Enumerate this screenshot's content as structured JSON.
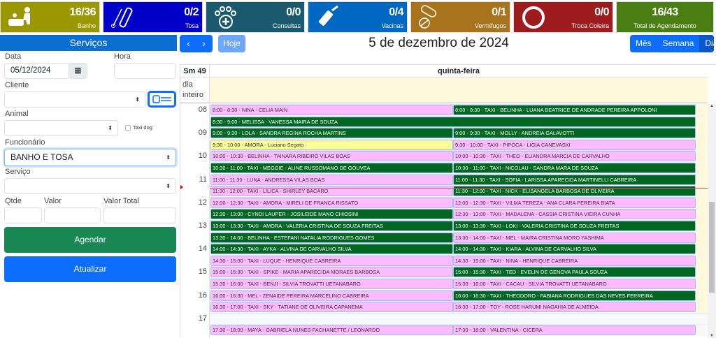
{
  "tiles": [
    {
      "count": "16/36",
      "label": "Banho",
      "color": "#9a9700",
      "icon": "dog-bath-icon"
    },
    {
      "count": "0/2",
      "label": "Tosa",
      "color": "#0000c8",
      "icon": "grooming-clipper-icon"
    },
    {
      "count": "0/0",
      "label": "Consultas",
      "color": "#1b5a6e",
      "icon": "paw-medical-icon"
    },
    {
      "count": "0/4",
      "label": "Vacinas",
      "color": "#0067c2",
      "icon": "syringe-icon"
    },
    {
      "count": "0/1",
      "label": "Vermifugos",
      "color": "#a8731a",
      "icon": "pills-icon"
    },
    {
      "count": "0/0",
      "label": "Troca Coleira",
      "color": "#9e1c1e",
      "icon": "collar-ring-icon"
    },
    {
      "count": "16/43",
      "label": "Total de Agendamento",
      "color": "#4a7e12",
      "icon": ""
    }
  ],
  "sidebar": {
    "header": "Serviços",
    "data_label": "Data",
    "data_value": "05/12/2024",
    "hora_label": "Hora",
    "hora_value": "",
    "cliente_label": "Cliente",
    "cliente_value": "",
    "animal_label": "Animal",
    "animal_value": "",
    "taxi_label": "Taxi dog",
    "taxi_checked": false,
    "funcionario_label": "Funcionário",
    "funcionario_value": "BANHO E TOSA",
    "servico_label": "Serviço",
    "servico_value": "",
    "qtde_label": "Qtde",
    "valor_label": "Valor",
    "valor_total_label": "Valor Total",
    "agendar": "Agendar",
    "atualizar": "Atualizar"
  },
  "toolbar": {
    "prev": "‹",
    "next": "›",
    "today": "Hoje",
    "title": "5 de dezembro de 2024",
    "views": [
      "Mês",
      "Semana",
      "Dia"
    ],
    "active_view": "Dia"
  },
  "calendar": {
    "week": "Sm 49",
    "day": "quinta-feira",
    "allday": "dia inteiro",
    "hours": [
      "08",
      "09",
      "10",
      "11",
      "12",
      "13",
      "14",
      "15",
      "16",
      "17"
    ],
    "now": "11:37",
    "events": [
      {
        "start": "8:00",
        "col": 0,
        "color": "pink",
        "text": "8:00 - 8:30 - NINA - CELIA MAIN"
      },
      {
        "start": "8:30",
        "col": "full",
        "color": "green",
        "text": "8:30 - 9:00 - MELISSA - VANESSA MAIRA DE SOUZA"
      },
      {
        "start": "9:00",
        "col": 0,
        "color": "green",
        "text": "9:00 - 9:30 - LOLA - SANDRA REGINA ROCHA MARTINS"
      },
      {
        "start": "9:30",
        "col": 0,
        "color": "yellow",
        "text": "9:30 - 10:00 - AMORA - Luciano Segato"
      },
      {
        "start": "10:00",
        "col": 0,
        "color": "pink",
        "text": "10:00 - 10:30 - BELINHA - TAINARA RIBEIRO VILAS BOAS"
      },
      {
        "start": "10:30",
        "col": 0,
        "color": "green",
        "text": "10:30 - 11:00 - TAXI - MEGGIE - ALINE RUSSOMANO DE GOUVEA"
      },
      {
        "start": "11:00",
        "col": 0,
        "color": "pink",
        "text": "11:00 - 11:30 - LUNA - ANDRESSA VILAS BOAS"
      },
      {
        "start": "11:30",
        "col": 0,
        "color": "pink",
        "text": "11:30 - 12:00 - TAXI - LILICA - SHIRLEY BACARO"
      },
      {
        "start": "12:00",
        "col": 0,
        "color": "pink",
        "text": "12:00 - 12:30 - TAXI - AMORA - MIRELI DE FRANCA RISSATO"
      },
      {
        "start": "12:30",
        "col": 0,
        "color": "green",
        "text": "12:30 - 13:00 - CYNDI LAUPER - JOSILEIDE MANO CHIOSINI"
      },
      {
        "start": "13:00",
        "col": 0,
        "color": "green",
        "text": "13:00 - 13:30 - TAXI - AMORA - VALERIA CRISTINA DE SOUZA FREITAS"
      },
      {
        "start": "13:30",
        "col": 0,
        "color": "green",
        "text": "13:30 - 14:00 - BELINHA - ESTEFANI NATALIA RODRIGUES GOMES"
      },
      {
        "start": "14:00",
        "col": 0,
        "color": "green",
        "text": "14:00 - 14:30 - TAXI - AYKA - ALVINA DE CARVALHO SILVA"
      },
      {
        "start": "14:30",
        "col": 0,
        "color": "pink",
        "text": "14:30 - 15:00 - TAXI - LUQUE - HENRIQUE CABREIRA"
      },
      {
        "start": "15:00",
        "col": 0,
        "color": "pink",
        "text": "15:00 - 15:30 - TAXI - SPIKE - MARIA APARECIDA MORAES BARBOSA"
      },
      {
        "start": "15:30",
        "col": 0,
        "color": "pink",
        "text": "15:30 - 16:00 - TAXI - BENJI - SILVIA TROVATTI UETANABARO"
      },
      {
        "start": "16:00",
        "col": 0,
        "color": "pink",
        "text": "16:00 - 16:30 - MEL - ZENAIDE PEREIRA MARCELINO CABREIRA"
      },
      {
        "start": "16:30",
        "col": 0,
        "color": "pink",
        "text": "16:30 - 17:00 - TAXI - SKY - TATIANE DE OLIVEIRA CAPANEMA"
      },
      {
        "start": "17:30",
        "col": 0,
        "color": "pink",
        "text": "17:30 - 18:00 - MAYA - GABRIELA NUNES FACHANETTE / LEONARDO"
      },
      {
        "start": "8:00",
        "col": 1,
        "color": "green",
        "text": "8:00 - 8:30 - TAXI - BELINHA - LUANA BEATRICE DE ANDRADE PEREIRA APPOLONI"
      },
      {
        "start": "9:00",
        "col": 1,
        "color": "green",
        "text": "9:00 - 9:30 - TAXI - MOLLY - ANDREIA GALAVOTTI"
      },
      {
        "start": "9:30",
        "col": 1,
        "color": "pink",
        "text": "9:30 - 10:00 - TAXI - PIPOCA - LIGIA CANEVASKI"
      },
      {
        "start": "10:00",
        "col": 1,
        "color": "pink",
        "text": "10:00 - 10:30 - TAXI - THEO - ELIANDRA MARCIA DE CARVALHO"
      },
      {
        "start": "10:30",
        "col": 1,
        "color": "green",
        "text": "10:30 - 11:00 - TAXI - NICOLAU - SANDRA MARA DE SOUZA"
      },
      {
        "start": "11:00",
        "col": 1,
        "color": "green",
        "text": "11:00 - 11:30 - TAXI - SOFIA - LARISSA APARECIDA MARTINELLI CABREIRA"
      },
      {
        "start": "11:30",
        "col": 1,
        "color": "green",
        "text": "11:30 - 12:00 - TAXI - NICK - ELISANGELA BARBOSA DE OLIVEIRA"
      },
      {
        "start": "12:00",
        "col": 1,
        "color": "pink",
        "text": "12:00 - 12:30 - TAXI - VILMA TEREZA - ANA CLARA PEREIRA BIATA"
      },
      {
        "start": "12:30",
        "col": 1,
        "color": "pink",
        "text": "12:30 - 13:00 - TAXI - MADALENA - CASSIA CRISTINA VIEIRA CUNHA"
      },
      {
        "start": "13:00",
        "col": 1,
        "color": "green",
        "text": "13:00 - 13:30 - TAXI - LOKI - VALERIA CRISTINA DE SOUZA FREITAS"
      },
      {
        "start": "13:30",
        "col": 1,
        "color": "pink",
        "text": "13:30 - 14:00 - TAXI - MEL - MAIRA CRISTINA MORO YASHIMA"
      },
      {
        "start": "14:00",
        "col": 1,
        "color": "green",
        "text": "14:00 - 14:30 - TAXI - KIARA - ALVINA DE CARVALHO SILVA"
      },
      {
        "start": "14:30",
        "col": 1,
        "color": "pink",
        "text": "14:30 - 15:00 - TAXI - NINA - HENRIQUE CABREIRA"
      },
      {
        "start": "15:00",
        "col": 1,
        "color": "green",
        "text": "15:00 - 15:30 - TAXI - TED - EVELIN DE GENOVA PAULA SOUZA"
      },
      {
        "start": "15:30",
        "col": 1,
        "color": "pink",
        "text": "15:30 - 16:00 - TAXI - CACAU - SILVIA TROVATTI UETANABARO"
      },
      {
        "start": "16:00",
        "col": 1,
        "color": "green",
        "text": "16:00 - 16:30 - TAXI - THEODORO - FABIANA RODRIGUES DAS NEVES FERREIRA"
      },
      {
        "start": "16:30",
        "col": 1,
        "color": "pink",
        "text": "16:30 - 17:00 - TOY - ROSE HARUMI NAGAHIA DE ALMEIDA"
      },
      {
        "start": "17:30",
        "col": 1,
        "color": "pink",
        "text": "17:30 - 18:00 - VALENTINA - CICERA"
      }
    ]
  }
}
